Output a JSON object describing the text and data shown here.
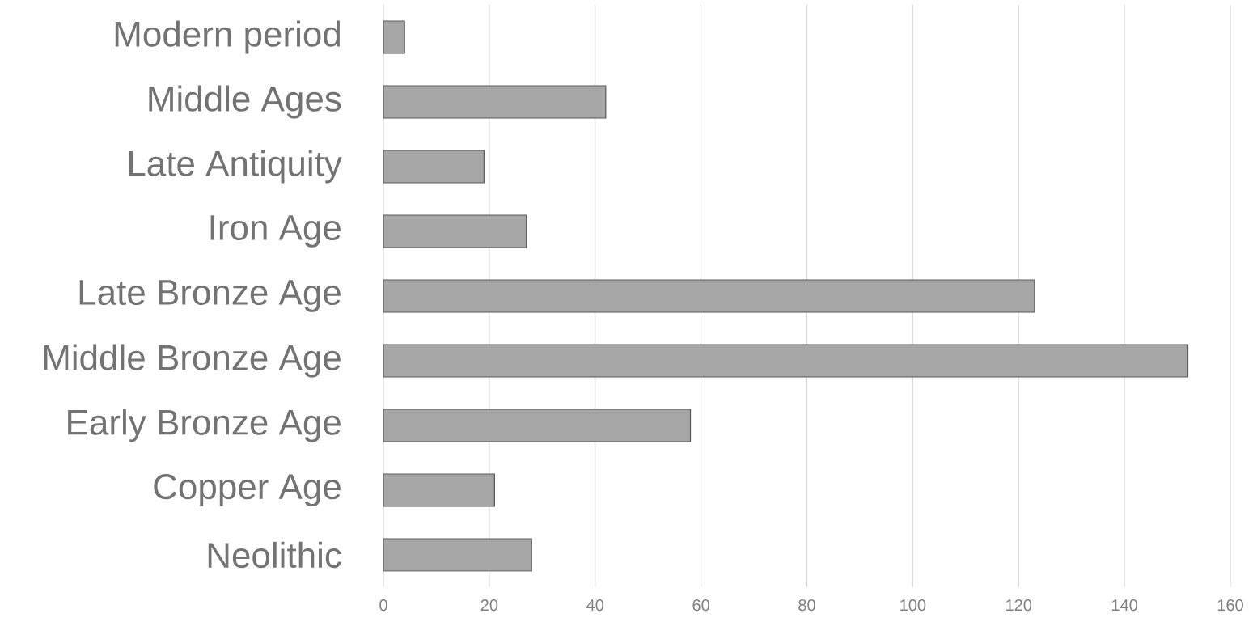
{
  "chart_data": {
    "type": "bar",
    "orientation": "horizontal",
    "categories": [
      "Modern period",
      "Middle Ages",
      "Late Antiquity",
      "Iron Age",
      "Late Bronze Age",
      "Middle Bronze Age",
      "Early Bronze Age",
      "Copper Age",
      "Neolithic"
    ],
    "values": [
      4,
      42,
      19,
      27,
      123,
      152,
      58,
      21,
      28
    ],
    "color": "#a6a6a6",
    "xlim": [
      0,
      160
    ],
    "xticks": [
      0,
      20,
      40,
      60,
      80,
      100,
      120,
      140,
      160
    ],
    "grid": "x"
  }
}
